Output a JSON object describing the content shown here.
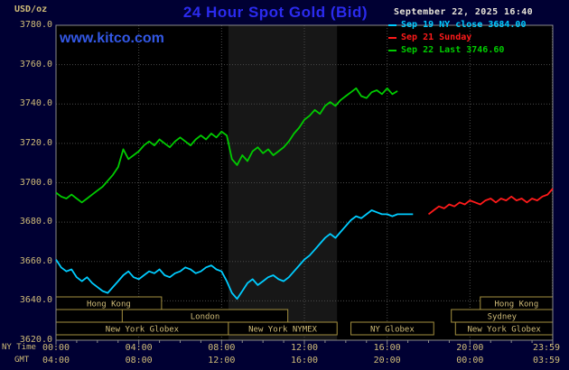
{
  "header": {
    "units_label": "USD/oz",
    "title": "24 Hour Spot Gold (Bid)",
    "datetime": "September 22, 2025 16:40",
    "watermark": "www.kitco.com"
  },
  "axis_footer": {
    "ny_time_label": "NY Time",
    "gmt_label": "GMT"
  },
  "colors": {
    "background": "#000033",
    "plot_bg": "#000000",
    "session_band": "#171717",
    "grid": "#4a4a4a",
    "axis_line": "#8a8a8a",
    "axis_text": "#d0bc78",
    "session_border": "#a38f3f",
    "session_text": "#d0bc78",
    "title_blue": "#2b2bee",
    "kitco_blue": "#3358e6",
    "date_text": "#e8e4d8"
  },
  "chart_data": {
    "type": "line",
    "title": "24 Hour Spot Gold (Bid)",
    "ylabel": "USD/oz",
    "xlabel": "",
    "grid": true,
    "legend_position": "top-right",
    "ylim": [
      3620,
      3780
    ],
    "xlim_hours": [
      0,
      24
    ],
    "ytick_values": [
      3620,
      3640,
      3660,
      3680,
      3700,
      3720,
      3740,
      3760,
      3780
    ],
    "ytick_labels": [
      "3620.0",
      "3640.0",
      "3660.0",
      "3680.0",
      "3700.0",
      "3720.0",
      "3740.0",
      "3760.0",
      "3780.0"
    ],
    "xticks": [
      {
        "hour": 0,
        "ny": "00:00",
        "gmt": "04:00"
      },
      {
        "hour": 4,
        "ny": "04:00",
        "gmt": "08:00"
      },
      {
        "hour": 8,
        "ny": "08:00",
        "gmt": "12:00"
      },
      {
        "hour": 12,
        "ny": "12:00",
        "gmt": "16:00"
      },
      {
        "hour": 16,
        "ny": "16:00",
        "gmt": "20:00"
      },
      {
        "hour": 20,
        "ny": "20:00",
        "gmt": "00:00"
      },
      {
        "hour": 23.983,
        "ny": "23:59",
        "gmt": "03:59"
      }
    ],
    "highlight_band": {
      "start_hour": 8.33,
      "end_hour": 13.58
    },
    "sessions": [
      {
        "row": 0,
        "start_hour": 0,
        "end_hour": 5.1,
        "label": "Hong Kong"
      },
      {
        "row": 0,
        "start_hour": 20.5,
        "end_hour": 24,
        "label": "Hong Kong"
      },
      {
        "row": 1,
        "start_hour": 3.2,
        "end_hour": 11.2,
        "label": "London"
      },
      {
        "row": 1,
        "start_hour": 19.1,
        "end_hour": 24,
        "label": "Sydney"
      },
      {
        "row": 2,
        "start_hour": 0,
        "end_hour": 8.33,
        "label": "New York Globex"
      },
      {
        "row": 2,
        "start_hour": 8.33,
        "end_hour": 13.58,
        "label": "New York NYMEX"
      },
      {
        "row": 2,
        "start_hour": 14.25,
        "end_hour": 18.25,
        "label": "NY Globex"
      },
      {
        "row": 2,
        "start_hour": 19.3,
        "end_hour": 24,
        "label": "New York Globex"
      }
    ],
    "series": [
      {
        "name": "sep19",
        "legend_label": "Sep 19 NY close 3684.00",
        "color": "#00ccff",
        "start_hour": 0,
        "step_hours": 0.25,
        "values": [
          3661,
          3657,
          3655,
          3656,
          3652,
          3650,
          3652,
          3649,
          3647,
          3645,
          3644,
          3647,
          3650,
          3653,
          3655,
          3652,
          3651,
          3653,
          3655,
          3654,
          3656,
          3653,
          3652,
          3654,
          3655,
          3657,
          3656,
          3654,
          3655,
          3657,
          3658,
          3656,
          3655,
          3650,
          3644,
          3641,
          3645,
          3649,
          3651,
          3648,
          3650,
          3652,
          3653,
          3651,
          3650,
          3652,
          3655,
          3658,
          3661,
          3663,
          3666,
          3669,
          3672,
          3674,
          3672,
          3675,
          3678,
          3681,
          3683,
          3682,
          3684,
          3686,
          3685,
          3684,
          3684,
          3683,
          3684,
          3684,
          3684,
          3684
        ]
      },
      {
        "name": "sep21",
        "legend_label": "Sep 21 Sunday",
        "color": "#ff1a1a",
        "start_hour": 18,
        "step_hours": 0.25,
        "values": [
          3684,
          3686,
          3688,
          3687,
          3689,
          3688,
          3690,
          3689,
          3691,
          3690,
          3689,
          3691,
          3692,
          3690,
          3692,
          3691,
          3693,
          3691,
          3692,
          3690,
          3692,
          3691,
          3693,
          3694,
          3697
        ]
      },
      {
        "name": "sep22",
        "legend_label": "Sep 22 Last 3746.60",
        "color": "#00cc00",
        "start_hour": 0,
        "step_hours": 0.25,
        "values": [
          3695,
          3693,
          3692,
          3694,
          3692,
          3690,
          3692,
          3694,
          3696,
          3698,
          3701,
          3704,
          3708,
          3717,
          3712,
          3714,
          3716,
          3719,
          3721,
          3719,
          3722,
          3720,
          3718,
          3721,
          3723,
          3721,
          3719,
          3722,
          3724,
          3722,
          3725,
          3723,
          3726,
          3724,
          3712,
          3709,
          3714,
          3711,
          3716,
          3718,
          3715,
          3717,
          3714,
          3716,
          3718,
          3721,
          3725,
          3728,
          3732,
          3734,
          3737,
          3735,
          3739,
          3741,
          3739,
          3742,
          3744,
          3746,
          3748,
          3744,
          3743,
          3746,
          3747,
          3745,
          3748,
          3745,
          3746.6
        ]
      }
    ]
  }
}
